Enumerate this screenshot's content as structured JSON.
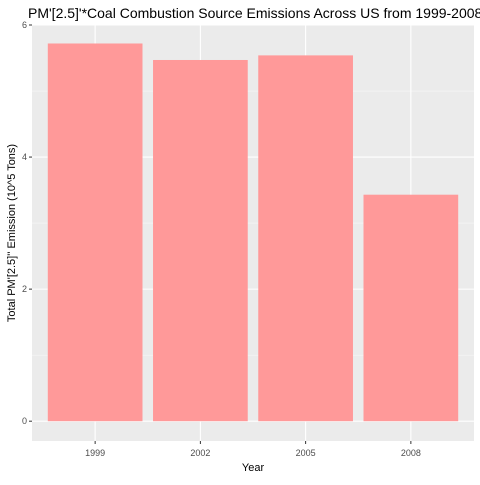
{
  "chart_data": {
    "type": "bar",
    "title": "PM'[2.5]'*Coal Combustion Source Emissions Across US from 1999-2008",
    "xlabel": "Year",
    "ylabel": "Total PM'[2.5]'' Emission (10^5 Tons)",
    "categories": [
      "1999",
      "2002",
      "2005",
      "2008"
    ],
    "values": [
      5.72,
      5.47,
      5.54,
      3.43
    ],
    "ylim": [
      0,
      6
    ],
    "y_ticks": [
      0,
      2,
      4,
      6
    ],
    "y_tick_labels": [
      "0",
      "2",
      "4",
      "6"
    ],
    "grid": true,
    "legend": "none",
    "colors": {
      "bar": "#FF9999",
      "panel_background": "#EBEBEB",
      "grid_major": "#FFFFFF",
      "text": "#000000",
      "tick_text": "#4D4D4D",
      "tick_mark": "#333333"
    }
  }
}
